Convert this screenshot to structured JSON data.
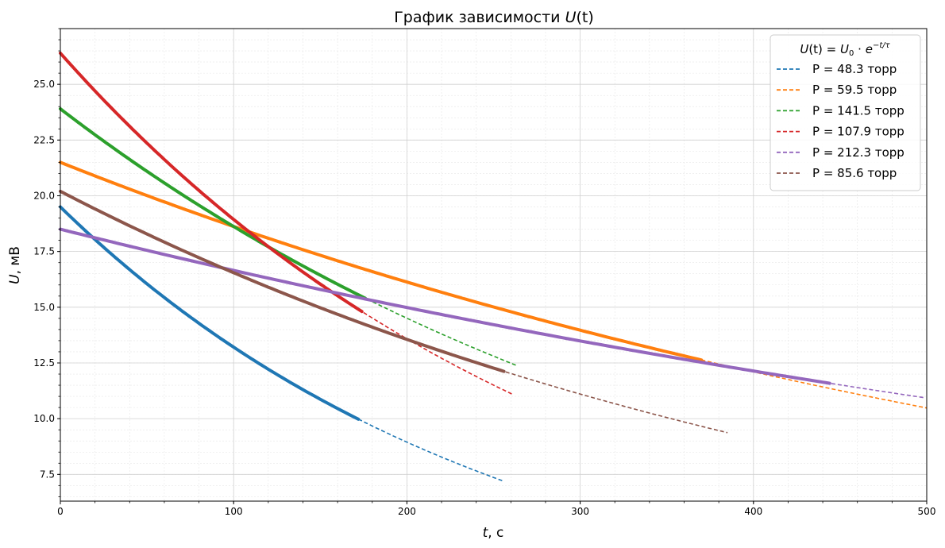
{
  "chart_data": {
    "type": "line",
    "title": "График зависимости U(t)",
    "title_parts": [
      "График зависимости ",
      "U",
      "(t)"
    ],
    "xlabel": "t, с",
    "xlabel_parts": [
      "t",
      ", с"
    ],
    "ylabel": "U, мВ",
    "ylabel_parts": [
      "U",
      ", мВ"
    ],
    "xlim": [
      0,
      500
    ],
    "ylim": [
      6.3,
      27.5
    ],
    "xticks": [
      0,
      100,
      200,
      300,
      400,
      500
    ],
    "xtick_labels": [
      "0",
      "100",
      "200",
      "300",
      "400",
      "500"
    ],
    "yticks": [
      7.5,
      10.0,
      12.5,
      15.0,
      17.5,
      20.0,
      22.5,
      25.0
    ],
    "ytick_labels": [
      "7.5",
      "10.0",
      "12.5",
      "15.0",
      "17.5",
      "20.0",
      "22.5",
      "25.0"
    ],
    "grid": true,
    "minor_grid": true,
    "legend_position": "top-right",
    "legend_title": "U(t) = U0 · e^(−t/τ)",
    "legend_title_parts": [
      "U",
      "(t) = ",
      "U",
      "0",
      " · ",
      "e",
      "−t/τ"
    ],
    "series": [
      {
        "name": "P = 48.3 торр",
        "color": "#1f77b4",
        "U0": 19.5,
        "tau": 256.7,
        "t_data_end": 172,
        "t_fit_end": 257
      },
      {
        "name": "P = 59.5 торр",
        "color": "#ff7f0e",
        "U0": 21.5,
        "tau": 695.8,
        "t_data_end": 370,
        "t_fit_end": 500
      },
      {
        "name": "P = 141.5 торр",
        "color": "#2ca02c",
        "U0": 23.9,
        "tau": 400.6,
        "t_data_end": 177,
        "t_fit_end": 263
      },
      {
        "name": "P = 107.9 торр",
        "color": "#d62728",
        "U0": 26.4,
        "tau": 301.0,
        "t_data_end": 175,
        "t_fit_end": 261
      },
      {
        "name": "P = 212.3 торр",
        "color": "#9467bd",
        "U0": 18.5,
        "tau": 949.3,
        "t_data_end": 445,
        "t_fit_end": 500
      },
      {
        "name": "P = 85.6 торр",
        "color": "#8c564b",
        "U0": 20.2,
        "tau": 501.4,
        "t_data_end": 257,
        "t_fit_end": 385
      }
    ]
  }
}
